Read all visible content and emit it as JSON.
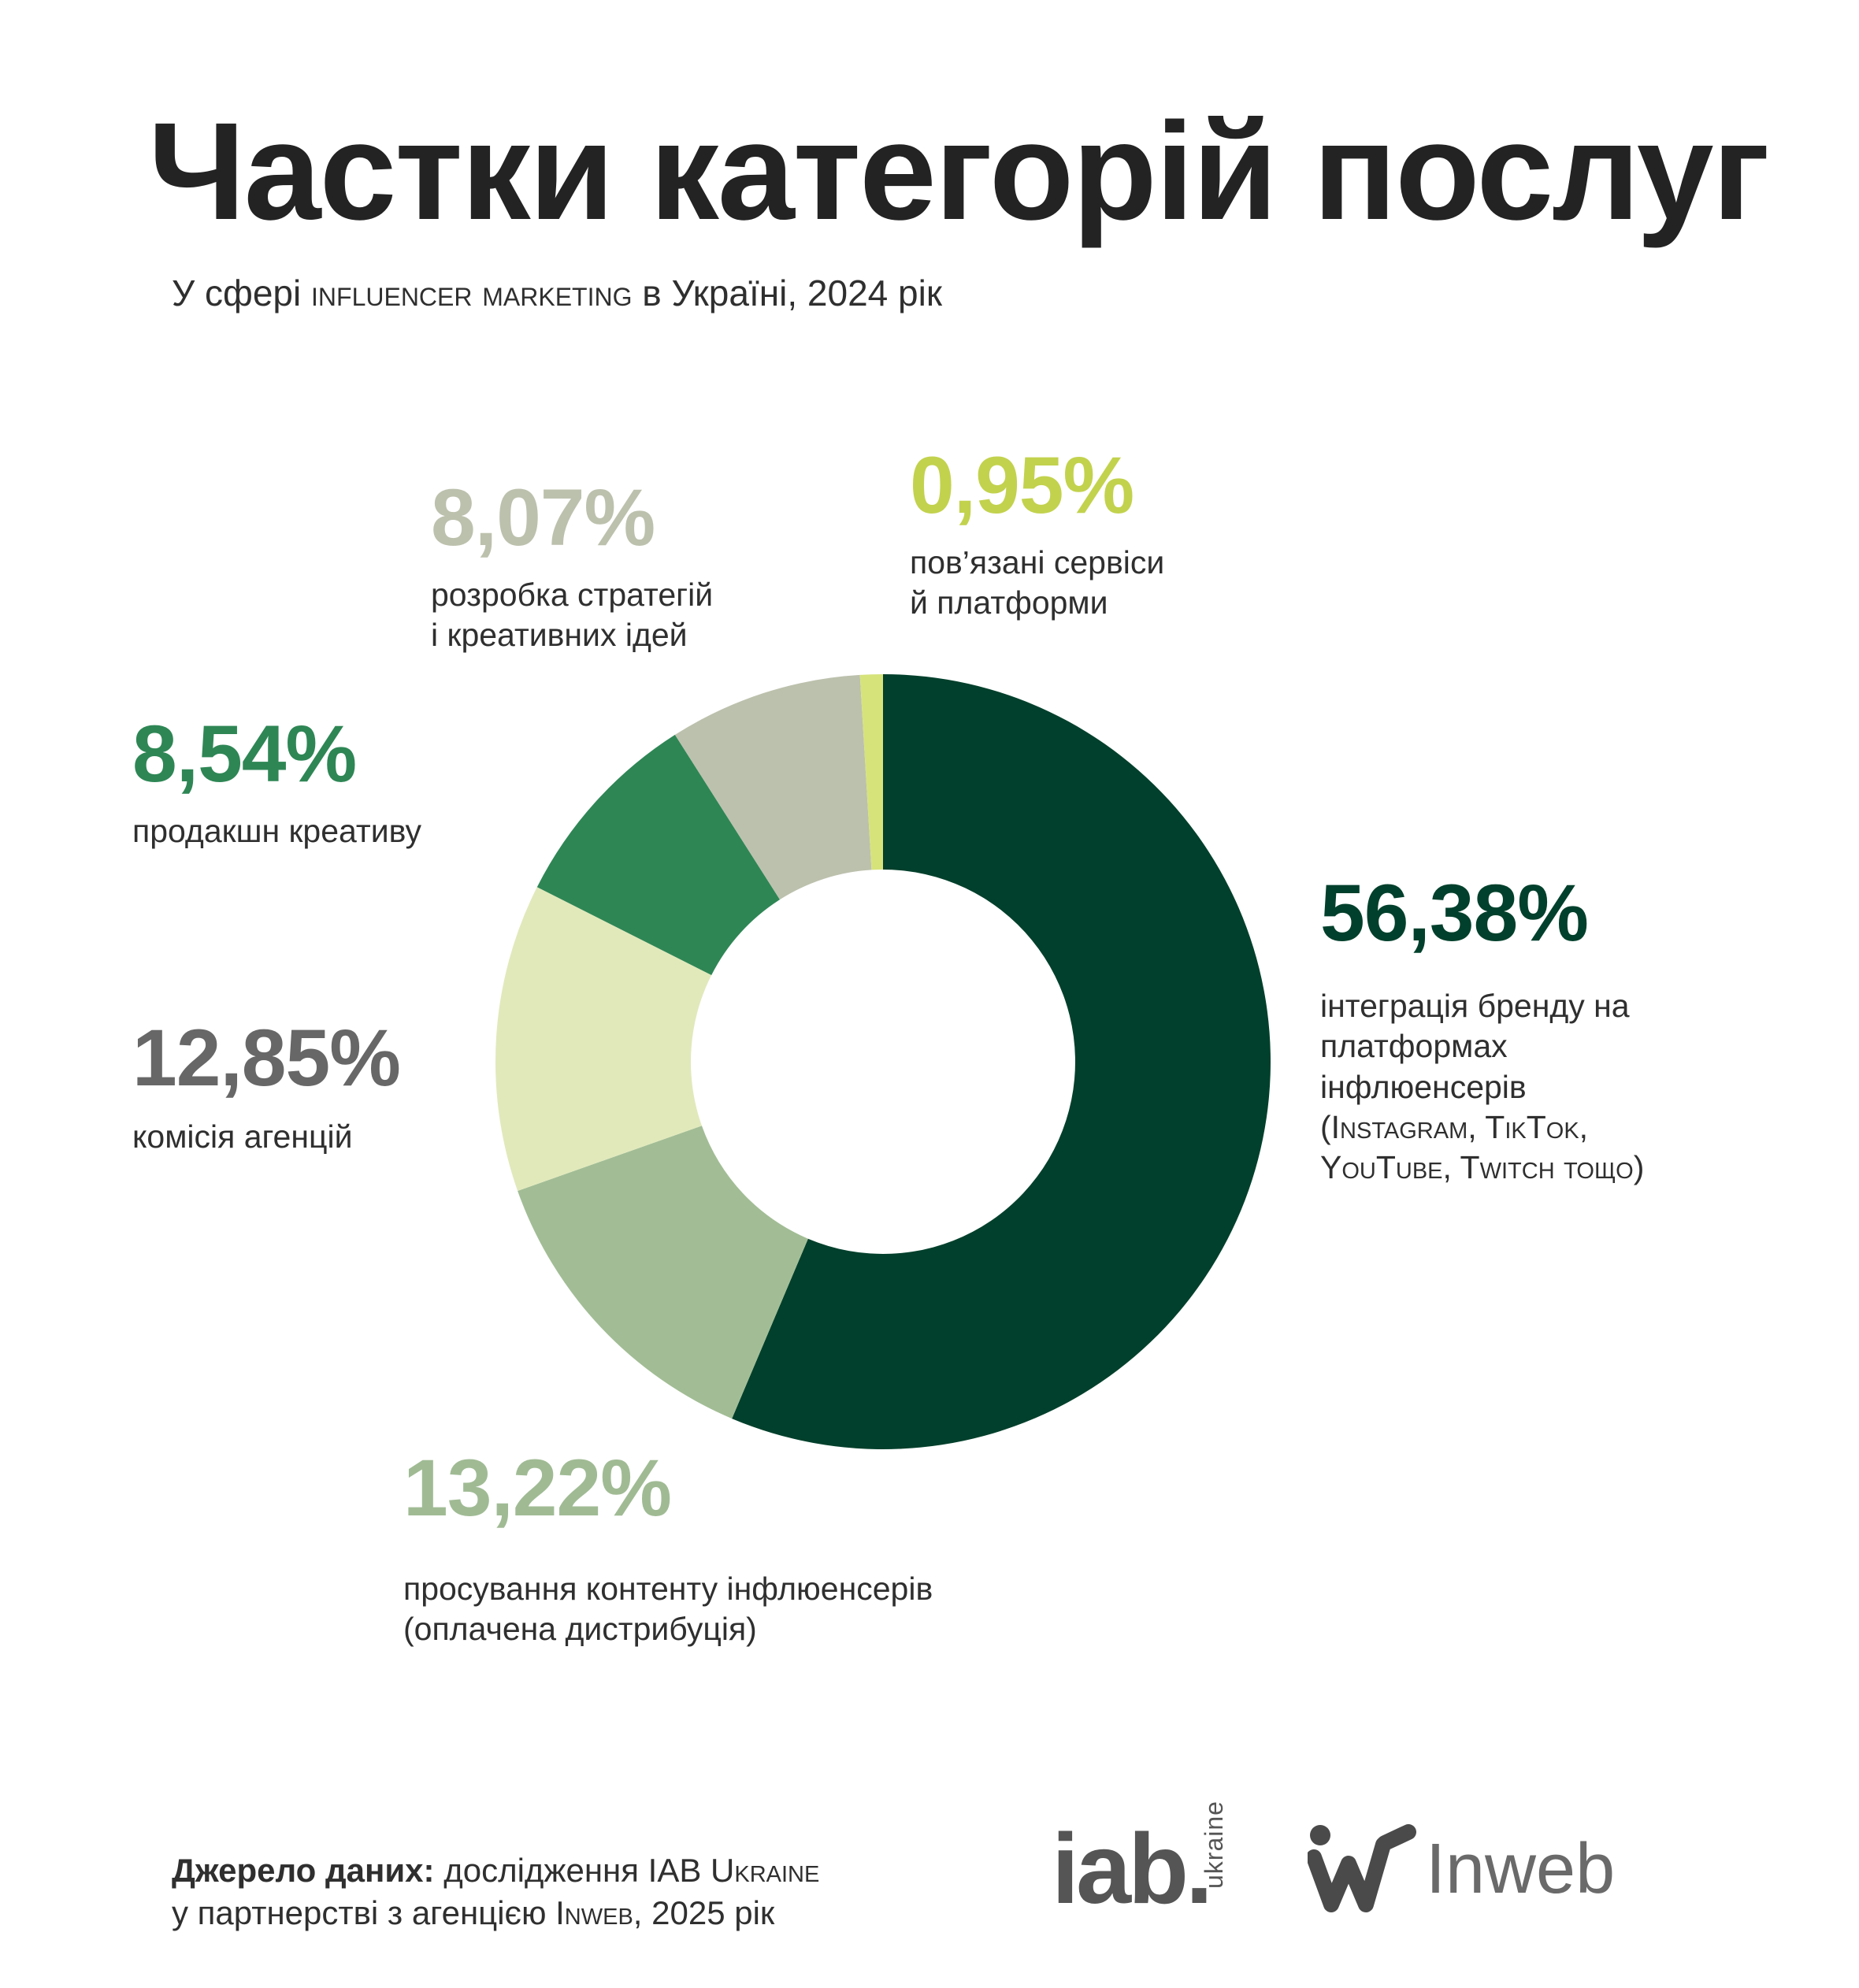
{
  "title": "Частки категорій послуг",
  "subtitle": {
    "prefix": "У сфері ",
    "smallcaps": "influencer marketing",
    "suffix": " в Україні, 2024 рік"
  },
  "chart_data": {
    "type": "pie",
    "subtype": "donut",
    "categories": [
      "інтеграція бренду на платформах інфлюенсерів (Instagram, TikTok, YouTube, Twitch тощо)",
      "просування контенту інфлюенсерів (оплачена дистрибуція)",
      "комісія агенцій",
      "продакшн креативу",
      "розробка стратегій і креативних ідей",
      "пов’язані сервіси й платформи"
    ],
    "values": [
      56.38,
      13.22,
      12.85,
      8.54,
      8.07,
      0.95
    ],
    "value_labels": [
      "56,38%",
      "13,22%",
      "12,85%",
      "8,54%",
      "8,07%",
      "0,95%"
    ],
    "colors": [
      "#01402c",
      "#a2bd95",
      "#e1e9bb",
      "#2e8655",
      "#bcc1ad",
      "#d6e37b"
    ],
    "label_colors": [
      "#01402c",
      "#a0bb94",
      "#676767",
      "#2e8655",
      "#bcc1ad",
      "#c2d24d"
    ],
    "start": "top",
    "direction": "clockwise"
  },
  "labels": [
    {
      "pct": "56,38%",
      "lines": [
        "інтеграція бренду на",
        "платформах",
        "інфлюенсерів"
      ],
      "caps_lines": [
        "(Instagram, TikTok,",
        "YouTube, Twitch тощо)"
      ]
    },
    {
      "pct": "13,22%",
      "lines": [
        "просування контенту інфлюенсерів",
        "(оплачена дистрибуція)"
      ]
    },
    {
      "pct": "12,85%",
      "lines": [
        "комісія агенцій"
      ]
    },
    {
      "pct": "8,54%",
      "lines": [
        "продакшн креативу"
      ]
    },
    {
      "pct": "8,07%",
      "lines": [
        "розробка стратегій",
        "і креативних ідей"
      ]
    },
    {
      "pct": "0,95%",
      "lines": [
        "пов’язані сервіси",
        "й платформи"
      ]
    }
  ],
  "source": {
    "bold": "Джерело даних:",
    "line1_prefix": " дослідження ",
    "line1_caps": "IAB Ukraine",
    "line2_prefix": "у партнерстві з агенцією ",
    "line2_caps": "Inweb",
    "line2_suffix": ", 2025 рік"
  },
  "logos": {
    "iab_word": "iab.",
    "iab_sub": "ukraine",
    "inweb_word": "Inweb",
    "iab_icon": "iab-logo",
    "inweb_icon": "inweb-logo-icon"
  }
}
